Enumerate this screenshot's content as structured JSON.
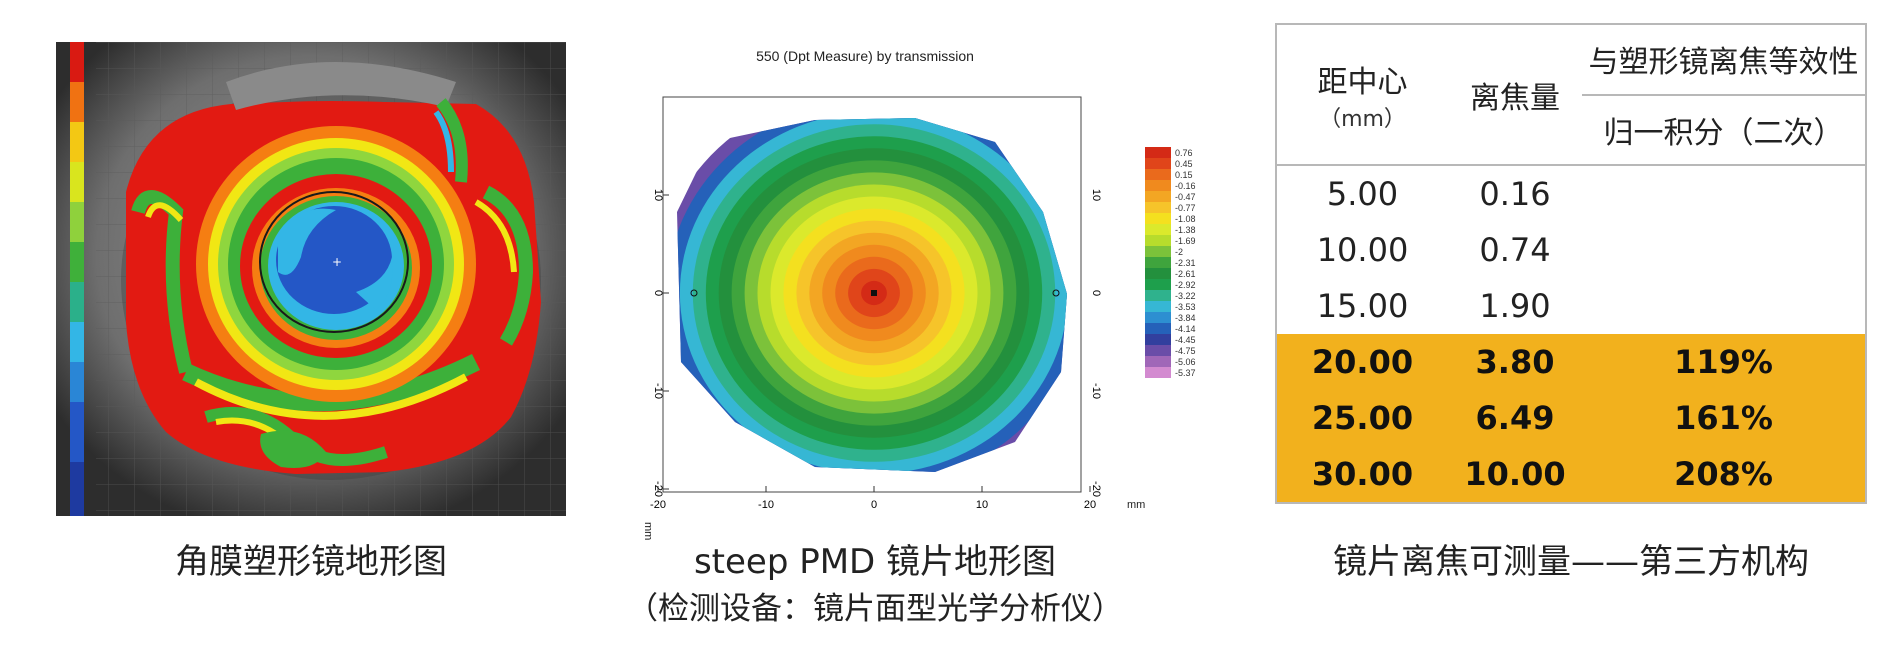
{
  "panel1": {
    "caption": "角膜塑形镜地形图",
    "colors": {
      "red": "#e21a12",
      "orange": "#f57e12",
      "yellow": "#f1e714",
      "green": "#3db03a",
      "lightgreen": "#8fd63e",
      "cyan": "#33b6e6",
      "blue": "#2457c6"
    }
  },
  "panel2": {
    "title": "550 (Dpt Measure) by transmission",
    "x_ticks": [
      "-20",
      "-10",
      "0",
      "10",
      "20"
    ],
    "y_ticks": [
      "10",
      "0",
      "-10",
      "-20"
    ],
    "unit": "mm",
    "legend": [
      "0.76",
      "0.45",
      "0.15",
      "-0.16",
      "-0.47",
      "-0.77",
      "-1.08",
      "-1.38",
      "-1.69",
      "-2",
      "-2.31",
      "-2.61",
      "-2.92",
      "-3.22",
      "-3.53",
      "-3.84",
      "-4.14",
      "-4.45",
      "-4.75",
      "-5.06",
      "-5.37"
    ],
    "legend_colors": [
      "#d42a16",
      "#e0451a",
      "#ea6a1c",
      "#f08a1e",
      "#f3a623",
      "#f6c42a",
      "#f4e01f",
      "#dbe92c",
      "#b7dc2c",
      "#7cc23a",
      "#3fa43d",
      "#23903d",
      "#1e9f4c",
      "#2fb28d",
      "#36b7d4",
      "#2d8fd1",
      "#2561b9",
      "#323f9e",
      "#6a4da8",
      "#a067b8",
      "#d38ad0"
    ],
    "caption_line1": "steep PMD 镜片地形图",
    "caption_line2": "（检测设备：镜片面型光学分析仪）"
  },
  "panel3": {
    "header": {
      "distance": "距中心",
      "distance_unit": "（mm）",
      "defocus": "离焦量",
      "equivalence": "与塑形镜离焦等效性",
      "integral": "归一积分（二次）"
    },
    "rows": [
      {
        "distance": "5.00",
        "defocus": "0.16",
        "equiv": "",
        "highlight": false
      },
      {
        "distance": "10.00",
        "defocus": "0.74",
        "equiv": "",
        "highlight": false
      },
      {
        "distance": "15.00",
        "defocus": "1.90",
        "equiv": "",
        "highlight": false
      },
      {
        "distance": "20.00",
        "defocus": "3.80",
        "equiv": "119%",
        "highlight": true
      },
      {
        "distance": "25.00",
        "defocus": "6.49",
        "equiv": "161%",
        "highlight": true
      },
      {
        "distance": "30.00",
        "defocus": "10.00",
        "equiv": "208%",
        "highlight": true
      }
    ],
    "highlight_color": "#f2b11d",
    "caption": "镜片离焦可测量——第三方机构"
  }
}
